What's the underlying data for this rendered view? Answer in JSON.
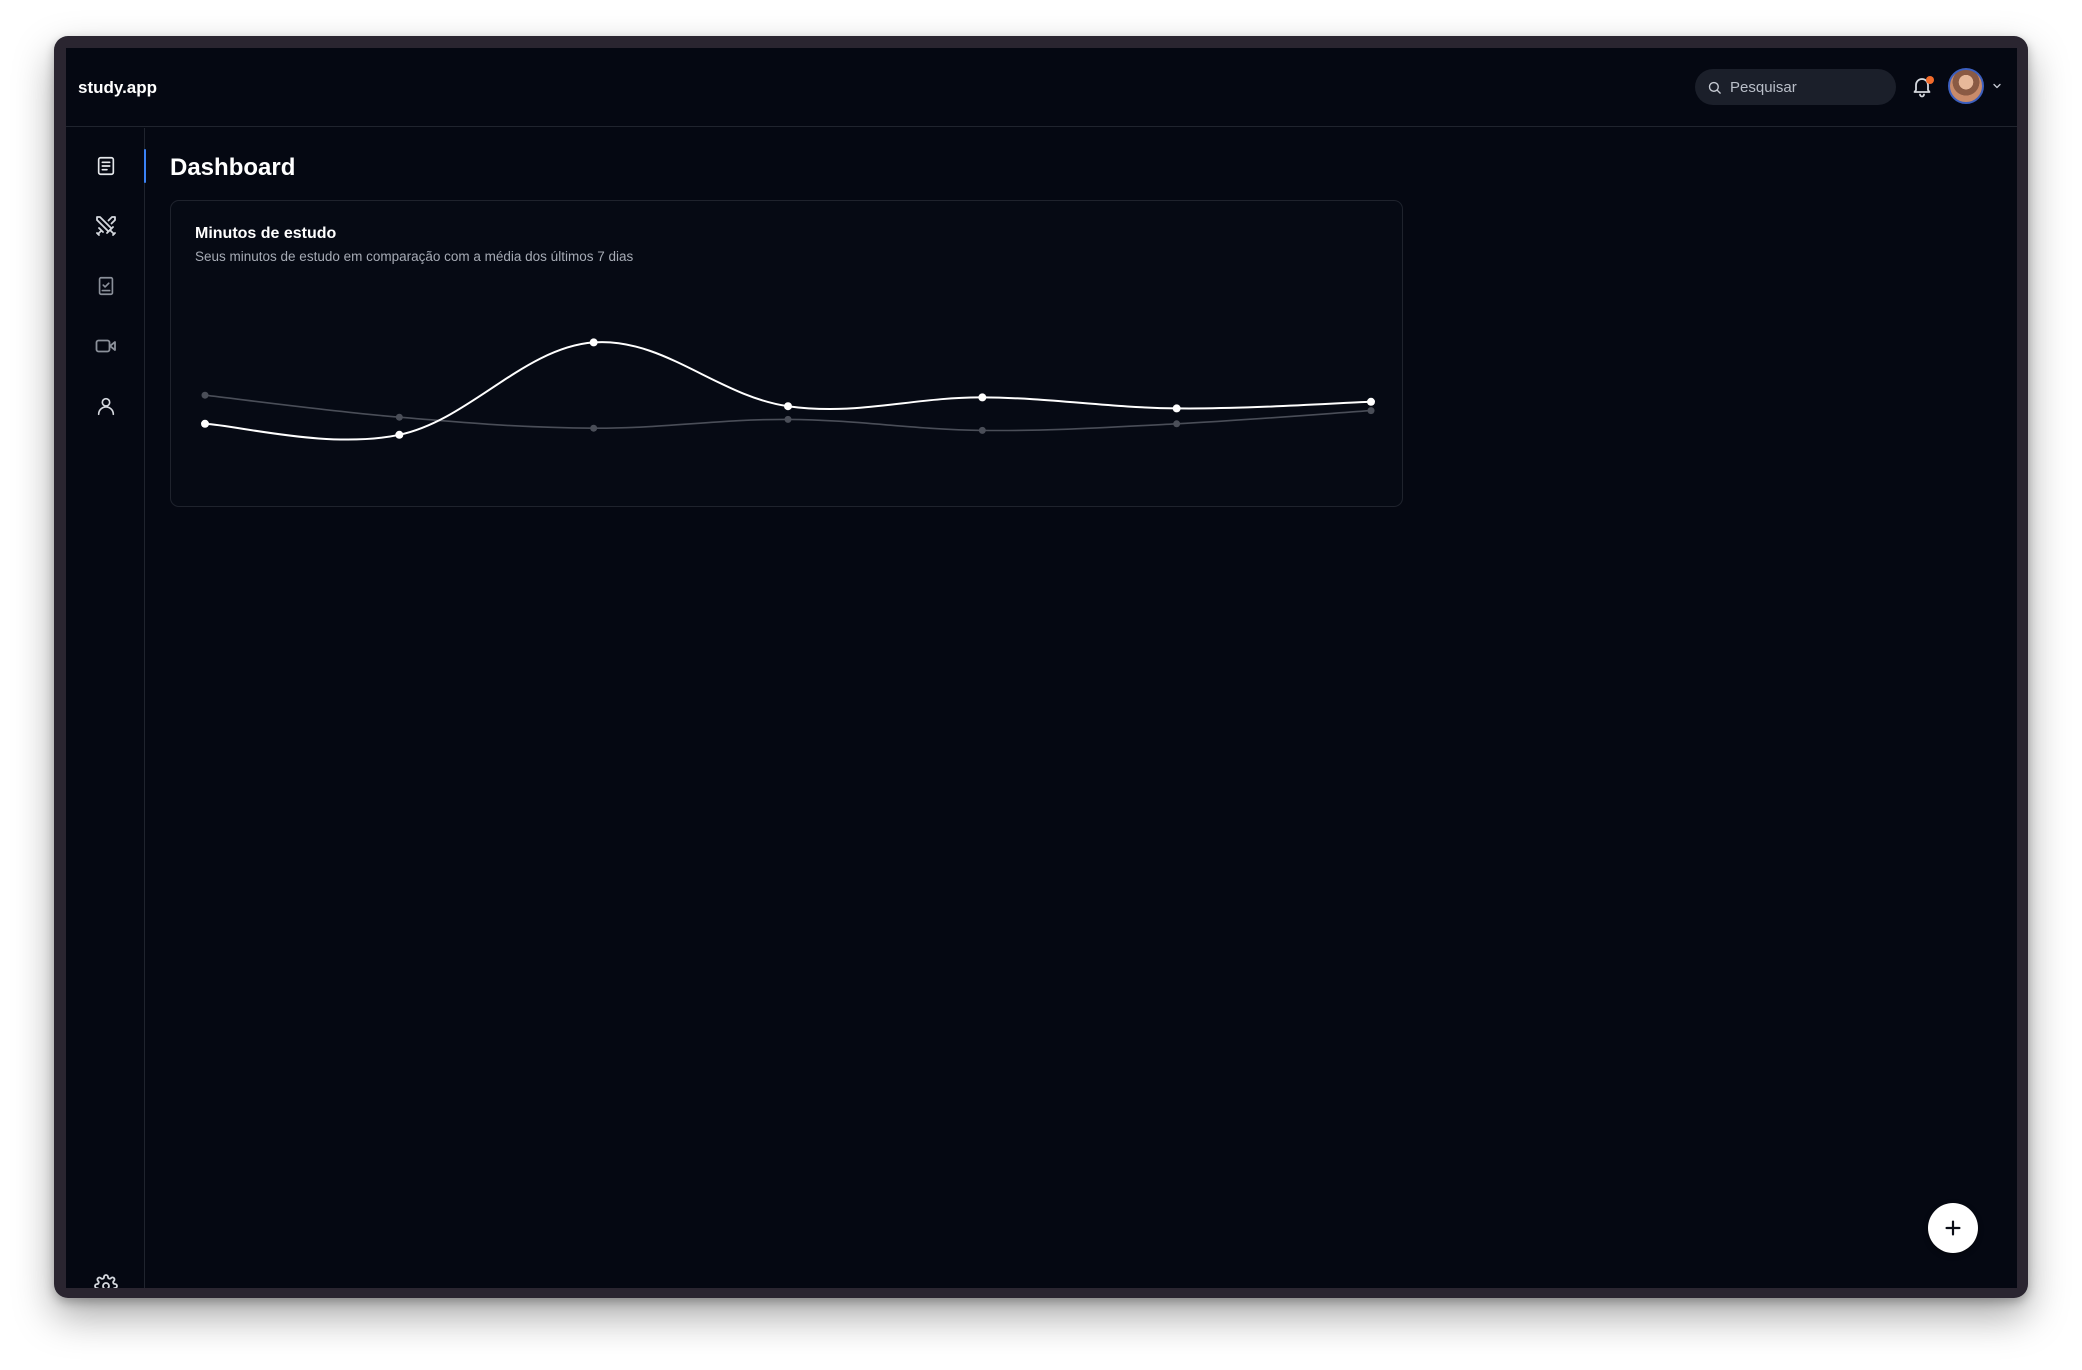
{
  "app": {
    "brand": "study.app"
  },
  "header": {
    "search": {
      "placeholder": "Pesquisar",
      "value": ""
    },
    "notifications": {
      "icon": "bell-icon",
      "has_unread": true,
      "badge_color": "#f26b2b"
    },
    "user_menu": {
      "icon": "chevron-down-icon"
    }
  },
  "sidebar": {
    "items": [
      {
        "id": "dashboard",
        "icon": "notes-icon",
        "active": true
      },
      {
        "id": "battle",
        "icon": "swords-icon",
        "active": false
      },
      {
        "id": "tasks",
        "icon": "checklist-icon",
        "active": false
      },
      {
        "id": "videos",
        "icon": "video-icon",
        "active": false
      },
      {
        "id": "profile",
        "icon": "user-icon",
        "active": false
      }
    ],
    "settings": {
      "icon": "gear-icon"
    }
  },
  "main": {
    "title": "Dashboard",
    "card": {
      "title": "Minutos de estudo",
      "subtitle": "Seus minutos de estudo em comparação com a média dos últimos 7 dias"
    }
  },
  "fab": {
    "icon": "plus-icon"
  },
  "colors": {
    "background": "#050812",
    "accent": "#3b82f6",
    "line_primary": "#ffffff",
    "line_secondary": "#4a4e58"
  },
  "chart_data": {
    "type": "line",
    "x": [
      1,
      2,
      3,
      4,
      5,
      6,
      7
    ],
    "ylim": [
      0,
      100
    ],
    "series": [
      {
        "values": [
          26,
          21,
          63,
          34,
          38,
          33,
          36
        ],
        "color": "#ffffff"
      },
      {
        "values": [
          39,
          29,
          24,
          28,
          23,
          26,
          32
        ],
        "color": "#4a4e58"
      }
    ],
    "grid": false,
    "legend": "none"
  }
}
